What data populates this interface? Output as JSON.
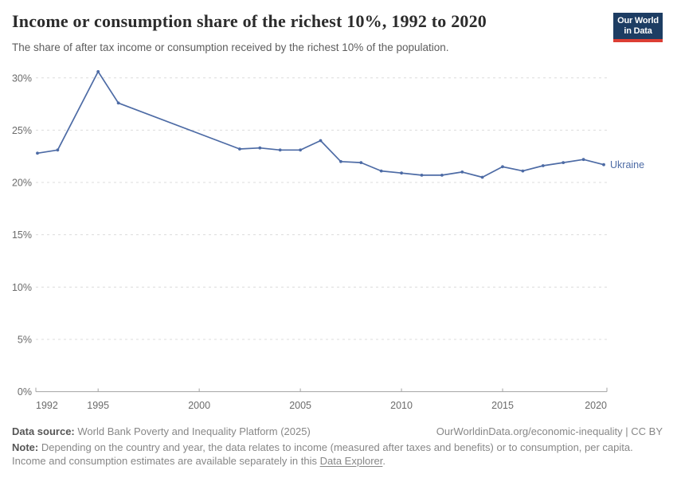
{
  "header": {
    "title": "Income or consumption share of the richest 10%, 1992 to 2020",
    "subtitle": "The share of after tax income or consumption received by the richest 10% of the population.",
    "logo_line1": "Our World",
    "logo_line2": "in Data"
  },
  "chart_data": {
    "type": "line",
    "title": "Income or consumption share of the richest 10%, 1992 to 2020",
    "xlabel": "",
    "ylabel": "",
    "xlim": [
      1992,
      2020
    ],
    "ylim": [
      0,
      30
    ],
    "x_ticks": [
      1992,
      1995,
      2000,
      2005,
      2010,
      2015,
      2020
    ],
    "y_ticks": [
      0,
      5,
      10,
      15,
      20,
      25,
      30
    ],
    "y_tick_suffix": "%",
    "grid": "horizontal-dashed",
    "legend_position": "end-of-line-label",
    "series": [
      {
        "name": "Ukraine",
        "points": [
          [
            1992,
            22.8
          ],
          [
            1993,
            23.1
          ],
          [
            1995,
            30.6
          ],
          [
            1996,
            27.6
          ],
          [
            2002,
            23.2
          ],
          [
            2003,
            23.3
          ],
          [
            2004,
            23.1
          ],
          [
            2005,
            23.1
          ],
          [
            2006,
            24.0
          ],
          [
            2007,
            22.0
          ],
          [
            2008,
            21.9
          ],
          [
            2009,
            21.1
          ],
          [
            2010,
            20.9
          ],
          [
            2011,
            20.7
          ],
          [
            2012,
            20.7
          ],
          [
            2013,
            21.0
          ],
          [
            2014,
            20.5
          ],
          [
            2015,
            21.5
          ],
          [
            2016,
            21.1
          ],
          [
            2017,
            21.6
          ],
          [
            2018,
            21.9
          ],
          [
            2019,
            22.2
          ],
          [
            2020,
            21.7
          ]
        ]
      }
    ]
  },
  "footer": {
    "datasource_label": "Data source:",
    "datasource_text": "World Bank Poverty and Inequality Platform (2025)",
    "cc_link": "OurWorldinData.org/economic-inequality | CC BY",
    "note_label": "Note:",
    "note_line1": "Depending on the country and year, the data relates to income (measured after taxes and benefits) or to consumption, per capita.",
    "note_line2_prefix": "Income and consumption estimates are available separately in this ",
    "note_link": "Data Explorer",
    "note_suffix": "."
  },
  "colors": {
    "line": "#4d6ba5",
    "grid": "#dcdcdc",
    "axis": "#a3a3a3",
    "tick_label": "#6b6b6b",
    "logo_bg": "#1d3d63",
    "logo_accent": "#dc3e34"
  }
}
